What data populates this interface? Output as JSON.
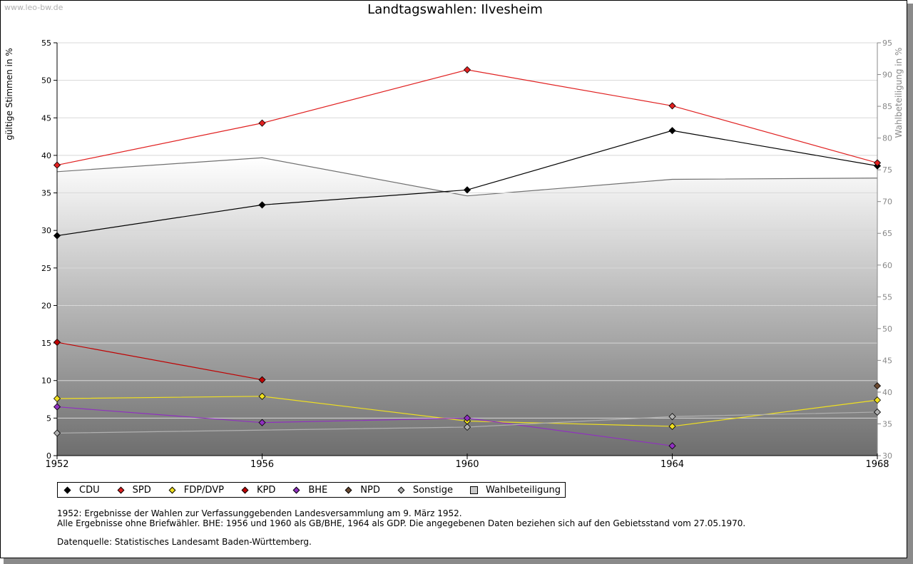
{
  "watermark": "www.leo-bw.de",
  "chart_data": {
    "type": "line",
    "title": "Landtagswahlen: Ilvesheim",
    "ylabel": "gültige Stimmen in %",
    "ylabel_right": "Wahlbeteiligung in %",
    "x": [
      1952,
      1956,
      1960,
      1964,
      1968
    ],
    "x_tick_labels": [
      "1952",
      "1956",
      "1960",
      "1964",
      "1968"
    ],
    "ylim": [
      0,
      55
    ],
    "y_ticks": [
      0,
      5,
      10,
      15,
      20,
      25,
      30,
      35,
      40,
      45,
      50,
      55
    ],
    "y_tick_labels": [
      "0",
      "5",
      "10",
      "15",
      "20",
      "25",
      "30",
      "35",
      "40",
      "45",
      "50",
      "55"
    ],
    "ylim_right": [
      30,
      95
    ],
    "y_ticks_right": [
      30,
      35,
      40,
      45,
      50,
      55,
      60,
      65,
      70,
      75,
      80,
      85,
      90,
      95
    ],
    "y_tick_labels_right": [
      "30",
      "35",
      "40",
      "45",
      "50",
      "55",
      "60",
      "65",
      "70",
      "75",
      "80",
      "85",
      "90",
      "95"
    ],
    "series": [
      {
        "name": "CDU",
        "color": "#000000",
        "values": [
          29.3,
          33.4,
          35.4,
          43.3,
          38.6
        ]
      },
      {
        "name": "SPD",
        "color": "#e02020",
        "values": [
          38.7,
          44.3,
          51.4,
          46.6,
          39.0
        ]
      },
      {
        "name": "FDP/DVP",
        "color": "#f0e020",
        "values": [
          7.6,
          7.9,
          4.6,
          3.9,
          7.4
        ]
      },
      {
        "name": "KPD",
        "color": "#c00000",
        "values": [
          15.1,
          10.1,
          null,
          null,
          null
        ]
      },
      {
        "name": "BHE",
        "color": "#9030c0",
        "values": [
          6.5,
          4.4,
          5.0,
          1.3,
          null
        ]
      },
      {
        "name": "NPD",
        "color": "#6b4a32",
        "values": [
          null,
          null,
          null,
          null,
          9.3
        ]
      },
      {
        "name": "Sonstige",
        "color": "#b0b0b0",
        "values": [
          3.0,
          null,
          3.8,
          5.2,
          5.8
        ]
      },
      {
        "name": "Wahlbeteiligung",
        "color": "#707070",
        "axis": "right",
        "area": true,
        "values": [
          74.7,
          76.9,
          70.9,
          73.5,
          73.7
        ]
      }
    ]
  },
  "legend": [
    {
      "label": "CDU",
      "color": "#000000",
      "shape": "diamond"
    },
    {
      "label": "SPD",
      "color": "#e02020",
      "shape": "diamond"
    },
    {
      "label": "FDP/DVP",
      "color": "#f0e020",
      "shape": "diamond"
    },
    {
      "label": "KPD",
      "color": "#c00000",
      "shape": "diamond"
    },
    {
      "label": "BHE",
      "color": "#9030c0",
      "shape": "diamond"
    },
    {
      "label": "NPD",
      "color": "#6b4a32",
      "shape": "diamond"
    },
    {
      "label": "Sonstige",
      "color": "#b0b0b0",
      "shape": "diamond"
    },
    {
      "label": "Wahlbeteiligung",
      "color": "#c8c8c8",
      "shape": "square"
    }
  ],
  "notes": {
    "line1": "1952: Ergebnisse der Wahlen zur Verfassunggebenden Landesversammlung am 9. März 1952.",
    "line2": "Alle Ergebnisse ohne Briefwähler. BHE: 1956 und 1960 als GB/BHE, 1964 als GDP. Die angegebenen Daten beziehen sich auf den Gebietsstand vom 27.05.1970.",
    "source": "Datenquelle: Statistisches Landesamt Baden-Württemberg."
  }
}
